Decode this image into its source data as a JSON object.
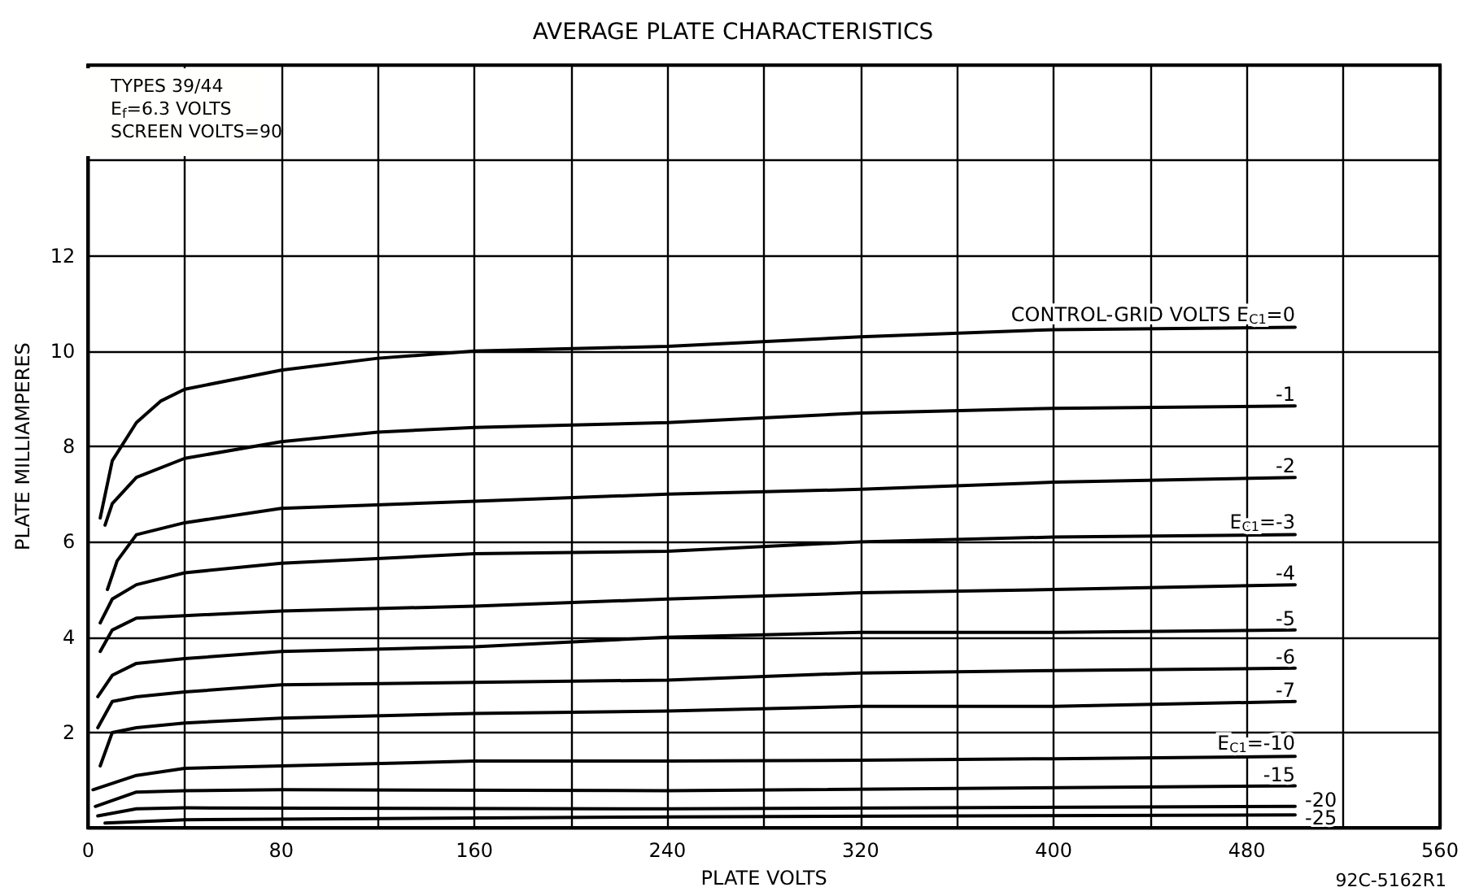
{
  "chart_data": {
    "type": "line",
    "title": "AVERAGE PLATE CHARACTERISTICS",
    "xlabel": "PLATE VOLTS",
    "ylabel": "PLATE MILLIAMPERES",
    "annotations": [
      "TYPES 39/44",
      "E$_{f}$=6.3 VOLTS",
      "SCREEN VOLTS=90",
      "92C-5162R1"
    ],
    "xlim": [
      0,
      560
    ],
    "ylim": [
      0,
      16
    ],
    "xticks": [
      0,
      {
        "value": 40,
        "label": null
      },
      80,
      {
        "value": 120,
        "label": null
      },
      160,
      {
        "value": 200,
        "label": null
      },
      240,
      {
        "value": 280,
        "label": null
      },
      320,
      {
        "value": 360,
        "label": null
      },
      400,
      {
        "value": 440,
        "label": null
      },
      480,
      {
        "value": 520,
        "label": null
      },
      560
    ],
    "yticks": [
      {
        "value": 0,
        "label": null
      },
      2,
      4,
      6,
      8,
      10,
      12,
      {
        "value": 14,
        "label": null
      },
      {
        "value": 16,
        "label": null
      }
    ],
    "grid": true,
    "legend": false,
    "marker": "none",
    "line_style": "solid",
    "series": [
      {
        "name": "CONTROL-GRID VOLTS E$_{C1}$=0",
        "color": "#000000",
        "x": [
          5,
          10,
          20,
          30,
          40,
          80,
          120,
          160,
          240,
          320,
          400,
          500
        ],
        "values": [
          6.5,
          7.7,
          8.5,
          8.95,
          9.2,
          9.6,
          9.85,
          10.0,
          10.1,
          10.3,
          10.45,
          10.5
        ]
      },
      {
        "name": "-1",
        "color": "#000000",
        "x": [
          7,
          10,
          20,
          40,
          80,
          120,
          160,
          240,
          320,
          400,
          500
        ],
        "values": [
          6.35,
          6.8,
          7.35,
          7.75,
          8.1,
          8.3,
          8.4,
          8.5,
          8.7,
          8.8,
          8.85
        ]
      },
      {
        "name": "-2",
        "color": "#000000",
        "x": [
          8,
          12,
          20,
          40,
          80,
          160,
          240,
          320,
          400,
          500
        ],
        "values": [
          5.0,
          5.6,
          6.15,
          6.4,
          6.7,
          6.85,
          7.0,
          7.1,
          7.25,
          7.35
        ]
      },
      {
        "name": "E$_{C1}$=-3",
        "color": "#000000",
        "x": [
          5,
          10,
          20,
          40,
          80,
          160,
          240,
          320,
          400,
          500
        ],
        "values": [
          4.3,
          4.8,
          5.1,
          5.35,
          5.55,
          5.75,
          5.8,
          6.0,
          6.1,
          6.15
        ]
      },
      {
        "name": "-4",
        "color": "#000000",
        "x": [
          5,
          10,
          20,
          40,
          80,
          160,
          240,
          320,
          400,
          500
        ],
        "values": [
          3.7,
          4.15,
          4.4,
          4.45,
          4.55,
          4.65,
          4.8,
          4.93,
          5.0,
          5.1
        ]
      },
      {
        "name": "-5",
        "color": "#000000",
        "x": [
          4,
          10,
          20,
          40,
          80,
          160,
          240,
          320,
          400,
          500
        ],
        "values": [
          2.75,
          3.2,
          3.45,
          3.55,
          3.7,
          3.8,
          4.0,
          4.1,
          4.1,
          4.15
        ]
      },
      {
        "name": "-6",
        "color": "#000000",
        "x": [
          4,
          10,
          20,
          40,
          80,
          160,
          240,
          320,
          400,
          500
        ],
        "values": [
          2.1,
          2.65,
          2.75,
          2.85,
          3.0,
          3.05,
          3.1,
          3.25,
          3.3,
          3.35
        ]
      },
      {
        "name": "-7",
        "color": "#000000",
        "x": [
          5,
          10,
          20,
          40,
          80,
          160,
          240,
          320,
          400,
          500
        ],
        "values": [
          1.3,
          2.0,
          2.1,
          2.2,
          2.3,
          2.4,
          2.45,
          2.55,
          2.55,
          2.65
        ]
      },
      {
        "name": "E$_{C1}$=-10",
        "color": "#000000",
        "x": [
          2,
          20,
          40,
          80,
          160,
          240,
          320,
          400,
          500
        ],
        "values": [
          0.8,
          1.1,
          1.25,
          1.3,
          1.4,
          1.4,
          1.42,
          1.45,
          1.5
        ]
      },
      {
        "name": "-15",
        "color": "#000000",
        "x": [
          3,
          20,
          40,
          80,
          240,
          500
        ],
        "values": [
          0.45,
          0.75,
          0.78,
          0.8,
          0.78,
          0.88
        ]
      },
      {
        "name": "-20",
        "color": "#000000",
        "x": [
          4,
          20,
          40,
          240,
          500
        ],
        "values": [
          0.25,
          0.4,
          0.42,
          0.4,
          0.45
        ]
      },
      {
        "name": "-25",
        "color": "#000000",
        "x": [
          7,
          40,
          240,
          500
        ],
        "values": [
          0.1,
          0.17,
          0.23,
          0.27
        ]
      }
    ]
  }
}
